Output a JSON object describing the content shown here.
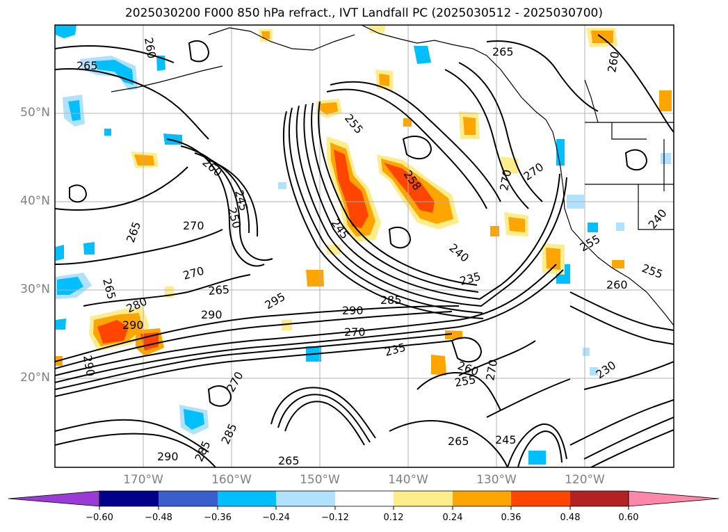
{
  "title": "2025030200 F000 850 hPa refract., IVT Landfall PC (2025030512 - 2025030700)",
  "map": {
    "lat_labels": [
      "50°N",
      "40°N",
      "30°N",
      "20°N"
    ],
    "lon_labels": [
      "170°W",
      "160°W",
      "150°W",
      "140°W",
      "130°W",
      "120°W"
    ],
    "contour_labels": [
      {
        "text": "260"
      },
      {
        "text": "265"
      },
      {
        "text": "265"
      },
      {
        "text": "260"
      },
      {
        "text": "255"
      },
      {
        "text": "258"
      },
      {
        "text": "270"
      },
      {
        "text": "270"
      },
      {
        "text": "245"
      },
      {
        "text": "250"
      },
      {
        "text": "260"
      },
      {
        "text": "270"
      },
      {
        "text": "265"
      },
      {
        "text": "270"
      },
      {
        "text": "265"
      },
      {
        "text": "265"
      },
      {
        "text": "280"
      },
      {
        "text": "290"
      },
      {
        "text": "290"
      },
      {
        "text": "295"
      },
      {
        "text": "290"
      },
      {
        "text": "285"
      },
      {
        "text": "270"
      },
      {
        "text": "235"
      },
      {
        "text": "240"
      },
      {
        "text": "245"
      },
      {
        "text": "235"
      },
      {
        "text": "260"
      },
      {
        "text": "255"
      },
      {
        "text": "230"
      },
      {
        "text": "255"
      },
      {
        "text": "260"
      },
      {
        "text": "255"
      },
      {
        "text": "240"
      },
      {
        "text": "270"
      },
      {
        "text": "285"
      },
      {
        "text": "285"
      },
      {
        "text": "290"
      },
      {
        "text": "265"
      },
      {
        "text": "265"
      },
      {
        "text": "270"
      },
      {
        "text": "245"
      },
      {
        "text": "290"
      }
    ]
  },
  "colorbar": {
    "ticks": [
      "−0.60",
      "−0.48",
      "−0.36",
      "−0.24",
      "−0.12",
      "0.12",
      "0.24",
      "0.36",
      "0.48",
      "0.60"
    ],
    "colors": [
      "#9b3bd6",
      "#00008b",
      "#3a5fcd",
      "#00bfff",
      "#b0e2ff",
      "#ffffff",
      "#ffec8b",
      "#ffa500",
      "#ff4500",
      "#b22222",
      "#ff88aa"
    ]
  }
}
